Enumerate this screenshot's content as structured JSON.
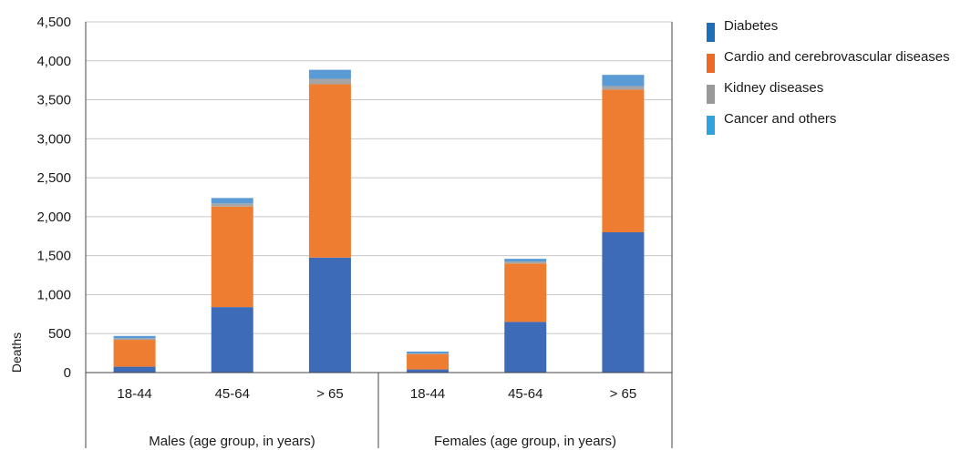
{
  "chart_data": {
    "type": "bar",
    "stacked": true,
    "ylabel": "Deaths",
    "ylim": [
      0,
      4500
    ],
    "yticks": [
      0,
      500,
      1000,
      1500,
      2000,
      2500,
      3000,
      3500,
      4000,
      4500
    ],
    "ytick_labels": [
      "0",
      "500",
      "1,000",
      "1,500",
      "2,000",
      "2,500",
      "3,000",
      "3,500",
      "4,000",
      "4,500"
    ],
    "grid": true,
    "legend_position": "right",
    "groups": [
      {
        "label": "Males (age group, in years)",
        "categories": [
          "18-44",
          "45-64",
          "> 65"
        ]
      },
      {
        "label": "Females (age group, in years)",
        "categories": [
          "18-44",
          "45-64",
          "> 65"
        ]
      }
    ],
    "categories": [
      "18-44",
      "45-64",
      "> 65",
      "18-44",
      "45-64",
      "> 65"
    ],
    "series": [
      {
        "name": "Diabetes",
        "color": "#3d6bb8",
        "values": [
          75,
          840,
          1475,
          40,
          650,
          1800
        ]
      },
      {
        "name": "Cardio and cerebrovascular diseases",
        "color": "#ee7d31",
        "values": [
          345,
          1290,
          2225,
          195,
          750,
          1830
        ]
      },
      {
        "name": "Kidney diseases",
        "color": "#a5a5a5",
        "values": [
          20,
          40,
          70,
          10,
          25,
          45
        ]
      },
      {
        "name": "Cancer and others",
        "color": "#5b9bd5",
        "values": [
          30,
          70,
          115,
          25,
          35,
          145
        ]
      }
    ],
    "legend_swatch_colors": [
      "#1f6fb8",
      "#ee6a24",
      "#999999",
      "#2ea3de"
    ]
  }
}
